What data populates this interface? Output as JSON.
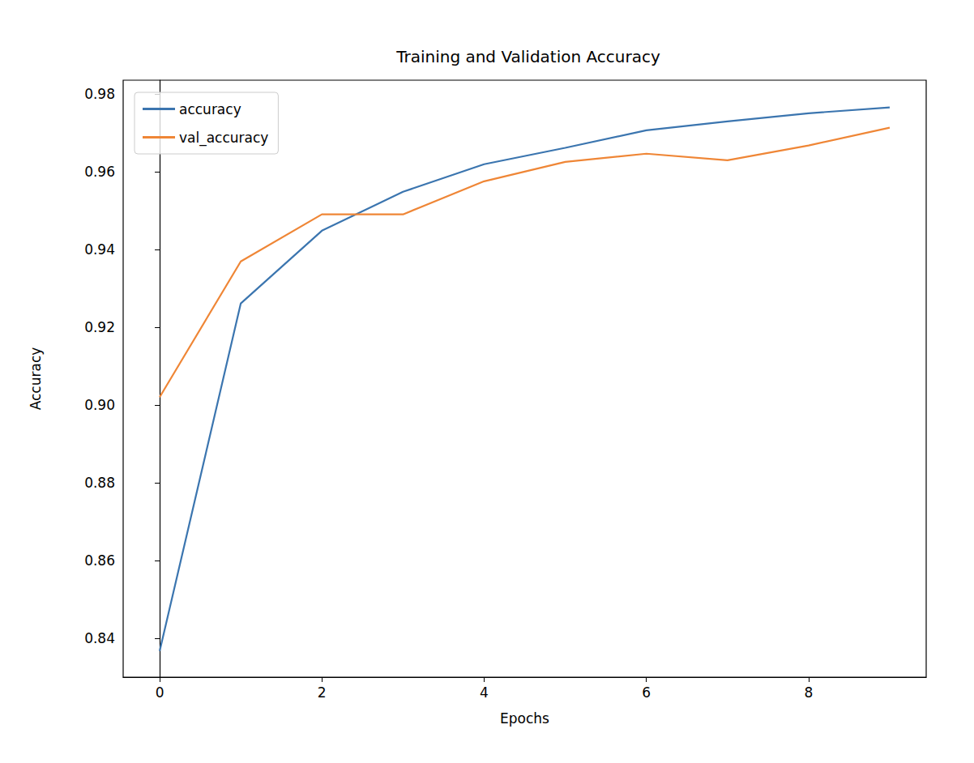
{
  "chart_data": {
    "type": "line",
    "title": "Training and Validation Accuracy",
    "x_label": "Epochs",
    "y_label": "Accuracy",
    "x": [
      0,
      1,
      2,
      3,
      4,
      5,
      6,
      7,
      8,
      9
    ],
    "series": [
      {
        "name": "accuracy",
        "color": "#3b75af",
        "values": [
          0.8367,
          0.9261,
          0.9448,
          0.9548,
          0.9619,
          0.9661,
          0.9706,
          0.9729,
          0.975,
          0.9765
        ]
      },
      {
        "name": "val_accuracy",
        "color": "#ef8636",
        "values": [
          0.902,
          0.9369,
          0.949,
          0.949,
          0.9575,
          0.9625,
          0.9646,
          0.9629,
          0.9667,
          0.9713
        ]
      }
    ],
    "xlim": [
      -0.45,
      9.45
    ],
    "xticks": [
      0,
      2,
      4,
      6,
      8
    ],
    "ylim": [
      0.83,
      0.9835
    ],
    "yticks": [
      0.84,
      0.86,
      0.88,
      {
        "value": 0.9,
        "label": "0.90"
      },
      0.92,
      0.94,
      0.96,
      0.98
    ],
    "grid": false,
    "legend": "upper left"
  }
}
